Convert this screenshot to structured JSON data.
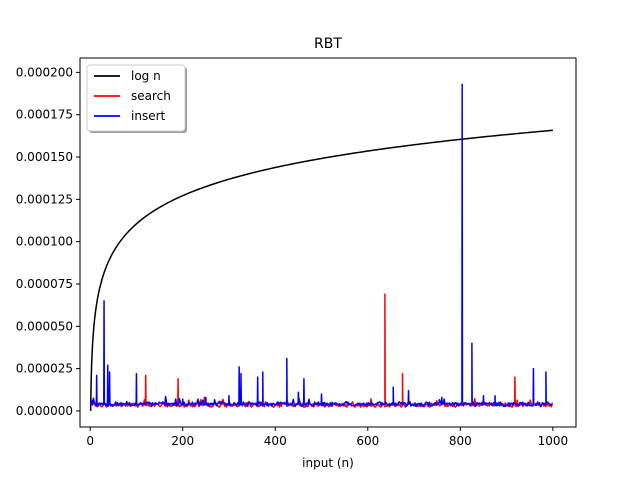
{
  "chart_data": {
    "type": "line",
    "title": "RBT",
    "xlabel": "input (n)",
    "ylabel": "",
    "xlim": [
      -22,
      1050
    ],
    "ylim": [
      -9.5e-06,
      0.0002085
    ],
    "xticks": [
      0,
      200,
      400,
      600,
      800,
      1000
    ],
    "yticks": [
      0.0,
      2.5e-05,
      5e-05,
      7.5e-05,
      0.0001,
      0.000125,
      0.00015,
      0.000175,
      0.0002
    ],
    "ytick_labels": [
      "0.000000",
      "0.000025",
      "0.000050",
      "0.000075",
      "0.000100",
      "0.000125",
      "0.000150",
      "0.000175",
      "0.000200"
    ],
    "xtick_labels": [
      "0",
      "200",
      "400",
      "600",
      "800",
      "1000"
    ],
    "grid": false,
    "legend_position": "top-left",
    "series": [
      {
        "name": "log n",
        "color": "#000000",
        "model": "log",
        "coefficient": 2.4e-05,
        "x_start": 1,
        "x_end": 1000
      },
      {
        "name": "search",
        "color": "#ff0000",
        "baseline": 3.5e-06,
        "x_start": 1,
        "x_end": 1000,
        "spikes": [
          {
            "x": 120,
            "y": 2.1e-05
          },
          {
            "x": 190,
            "y": 1.9e-05
          },
          {
            "x": 637,
            "y": 6.9e-05
          },
          {
            "x": 675,
            "y": 2.2e-05
          },
          {
            "x": 918,
            "y": 2e-05
          }
        ]
      },
      {
        "name": "insert",
        "color": "#0000ff",
        "baseline": 4e-06,
        "x_start": 1,
        "x_end": 1000,
        "spikes": [
          {
            "x": 14,
            "y": 2.1e-05
          },
          {
            "x": 30,
            "y": 6.5e-05
          },
          {
            "x": 38,
            "y": 2.7e-05
          },
          {
            "x": 42,
            "y": 2.3e-05
          },
          {
            "x": 100,
            "y": 2.2e-05
          },
          {
            "x": 200,
            "y": 7e-06
          },
          {
            "x": 250,
            "y": 8e-06
          },
          {
            "x": 300,
            "y": 9e-06
          },
          {
            "x": 322,
            "y": 2.6e-05
          },
          {
            "x": 326,
            "y": 2.2e-05
          },
          {
            "x": 362,
            "y": 2e-05
          },
          {
            "x": 373,
            "y": 2.3e-05
          },
          {
            "x": 425,
            "y": 3.1e-05
          },
          {
            "x": 450,
            "y": 1.1e-05
          },
          {
            "x": 462,
            "y": 1.9e-05
          },
          {
            "x": 500,
            "y": 1e-05
          },
          {
            "x": 655,
            "y": 1.4e-05
          },
          {
            "x": 688,
            "y": 1.2e-05
          },
          {
            "x": 760,
            "y": 8e-06
          },
          {
            "x": 804,
            "y": 0.000193
          },
          {
            "x": 825,
            "y": 4e-05
          },
          {
            "x": 850,
            "y": 9e-06
          },
          {
            "x": 875,
            "y": 9e-06
          },
          {
            "x": 958,
            "y": 2.5e-05
          },
          {
            "x": 985,
            "y": 2.3e-05
          }
        ]
      }
    ]
  }
}
